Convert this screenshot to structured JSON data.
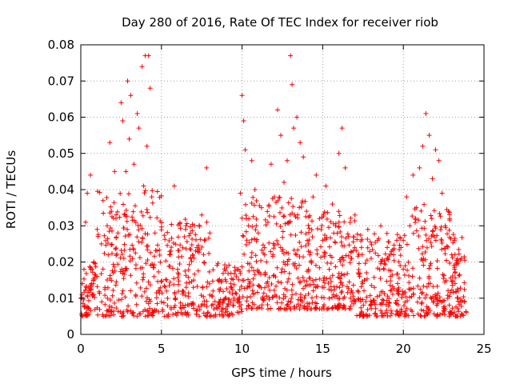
{
  "chart_data": {
    "type": "scatter",
    "title": "Day 280 of 2016, Rate Of TEC Index for receiver riob",
    "xlabel": "GPS time / hours",
    "ylabel": "ROTI / TECUs",
    "xlim": [
      0,
      25
    ],
    "ylim": [
      0,
      0.08
    ],
    "xticks": [
      0,
      5,
      10,
      15,
      20,
      25
    ],
    "xtick_labels": [
      "0",
      "5",
      "10",
      "15",
      "20",
      "25"
    ],
    "yticks": [
      0,
      0.01,
      0.02,
      0.03,
      0.04,
      0.05,
      0.06,
      0.07,
      0.08
    ],
    "ytick_labels": [
      "0",
      "0.01",
      "0.02",
      "0.03",
      "0.04",
      "0.05",
      "0.06",
      "0.07",
      "0.08"
    ],
    "grid": true,
    "marker": "plus",
    "series": [
      {
        "name": "ROTI",
        "color": "#ff0000",
        "data_range_x": [
          0.0,
          23.9
        ],
        "points": [
          [
            0.1,
            0.014
          ],
          [
            0.2,
            0.018
          ],
          [
            0.3,
            0.031
          ],
          [
            0.4,
            0.039
          ],
          [
            0.5,
            0.012
          ],
          [
            0.6,
            0.044
          ],
          [
            0.8,
            0.011
          ],
          [
            1.0,
            0.016
          ],
          [
            1.3,
            0.009
          ],
          [
            1.5,
            0.013
          ],
          [
            1.7,
            0.022
          ],
          [
            1.8,
            0.053
          ],
          [
            1.9,
            0.034
          ],
          [
            2.1,
            0.045
          ],
          [
            2.3,
            0.028
          ],
          [
            2.5,
            0.064
          ],
          [
            2.6,
            0.059
          ],
          [
            2.8,
            0.045
          ],
          [
            2.9,
            0.07
          ],
          [
            3.0,
            0.054
          ],
          [
            3.1,
            0.066
          ],
          [
            3.3,
            0.047
          ],
          [
            3.5,
            0.061
          ],
          [
            3.6,
            0.057
          ],
          [
            3.8,
            0.074
          ],
          [
            3.9,
            0.041
          ],
          [
            4.0,
            0.077
          ],
          [
            4.1,
            0.052
          ],
          [
            4.2,
            0.077
          ],
          [
            4.3,
            0.068
          ],
          [
            4.4,
            0.038
          ],
          [
            4.6,
            0.028
          ],
          [
            4.8,
            0.012
          ],
          [
            5.0,
            0.009
          ],
          [
            5.2,
            0.005
          ],
          [
            5.5,
            0.022
          ],
          [
            5.8,
            0.041
          ],
          [
            6.0,
            0.018
          ],
          [
            6.3,
            0.012
          ],
          [
            6.5,
            0.029
          ],
          [
            6.8,
            0.021
          ],
          [
            7.0,
            0.015
          ],
          [
            7.2,
            0.024
          ],
          [
            7.5,
            0.033
          ],
          [
            7.8,
            0.046
          ],
          [
            8.0,
            0.028
          ],
          [
            8.2,
            0.012
          ],
          [
            8.5,
            0.015
          ],
          [
            8.8,
            0.009
          ],
          [
            9.0,
            0.007
          ],
          [
            9.3,
            0.014
          ],
          [
            9.5,
            0.01
          ],
          [
            9.7,
            0.018
          ],
          [
            9.9,
            0.039
          ],
          [
            10.0,
            0.066
          ],
          [
            10.1,
            0.059
          ],
          [
            10.2,
            0.051
          ],
          [
            10.4,
            0.03
          ],
          [
            10.6,
            0.048
          ],
          [
            10.8,
            0.04
          ],
          [
            11.0,
            0.028
          ],
          [
            11.2,
            0.035
          ],
          [
            11.4,
            0.022
          ],
          [
            11.6,
            0.031
          ],
          [
            11.8,
            0.047
          ],
          [
            12.0,
            0.038
          ],
          [
            12.2,
            0.062
          ],
          [
            12.4,
            0.055
          ],
          [
            12.6,
            0.042
          ],
          [
            12.8,
            0.048
          ],
          [
            13.0,
            0.077
          ],
          [
            13.1,
            0.069
          ],
          [
            13.2,
            0.057
          ],
          [
            13.4,
            0.06
          ],
          [
            13.6,
            0.053
          ],
          [
            13.8,
            0.049
          ],
          [
            14.0,
            0.034
          ],
          [
            14.2,
            0.022
          ],
          [
            14.4,
            0.038
          ],
          [
            14.6,
            0.044
          ],
          [
            14.8,
            0.032
          ],
          [
            15.0,
            0.026
          ],
          [
            15.2,
            0.041
          ],
          [
            15.4,
            0.018
          ],
          [
            15.6,
            0.036
          ],
          [
            15.8,
            0.03
          ],
          [
            16.0,
            0.05
          ],
          [
            16.2,
            0.057
          ],
          [
            16.4,
            0.046
          ],
          [
            16.6,
            0.027
          ],
          [
            16.8,
            0.021
          ],
          [
            17.0,
            0.033
          ],
          [
            17.2,
            0.017
          ],
          [
            17.4,
            0.024
          ],
          [
            17.6,
            0.015
          ],
          [
            17.8,
            0.029
          ],
          [
            18.0,
            0.021
          ],
          [
            18.2,
            0.013
          ],
          [
            18.4,
            0.026
          ],
          [
            18.6,
            0.03
          ],
          [
            18.8,
            0.018
          ],
          [
            19.0,
            0.024
          ],
          [
            19.2,
            0.016
          ],
          [
            19.4,
            0.022
          ],
          [
            19.6,
            0.012
          ],
          [
            19.8,
            0.019
          ],
          [
            20.0,
            0.026
          ],
          [
            20.2,
            0.038
          ],
          [
            20.4,
            0.03
          ],
          [
            20.6,
            0.044
          ],
          [
            20.8,
            0.035
          ],
          [
            21.0,
            0.046
          ],
          [
            21.2,
            0.052
          ],
          [
            21.4,
            0.061
          ],
          [
            21.6,
            0.055
          ],
          [
            21.8,
            0.043
          ],
          [
            22.0,
            0.051
          ],
          [
            22.2,
            0.048
          ],
          [
            22.4,
            0.039
          ],
          [
            22.6,
            0.03
          ],
          [
            22.8,
            0.034
          ],
          [
            23.0,
            0.022
          ],
          [
            23.2,
            0.017
          ],
          [
            23.4,
            0.012
          ],
          [
            23.6,
            0.021
          ],
          [
            23.8,
            0.009
          ]
        ]
      }
    ]
  }
}
